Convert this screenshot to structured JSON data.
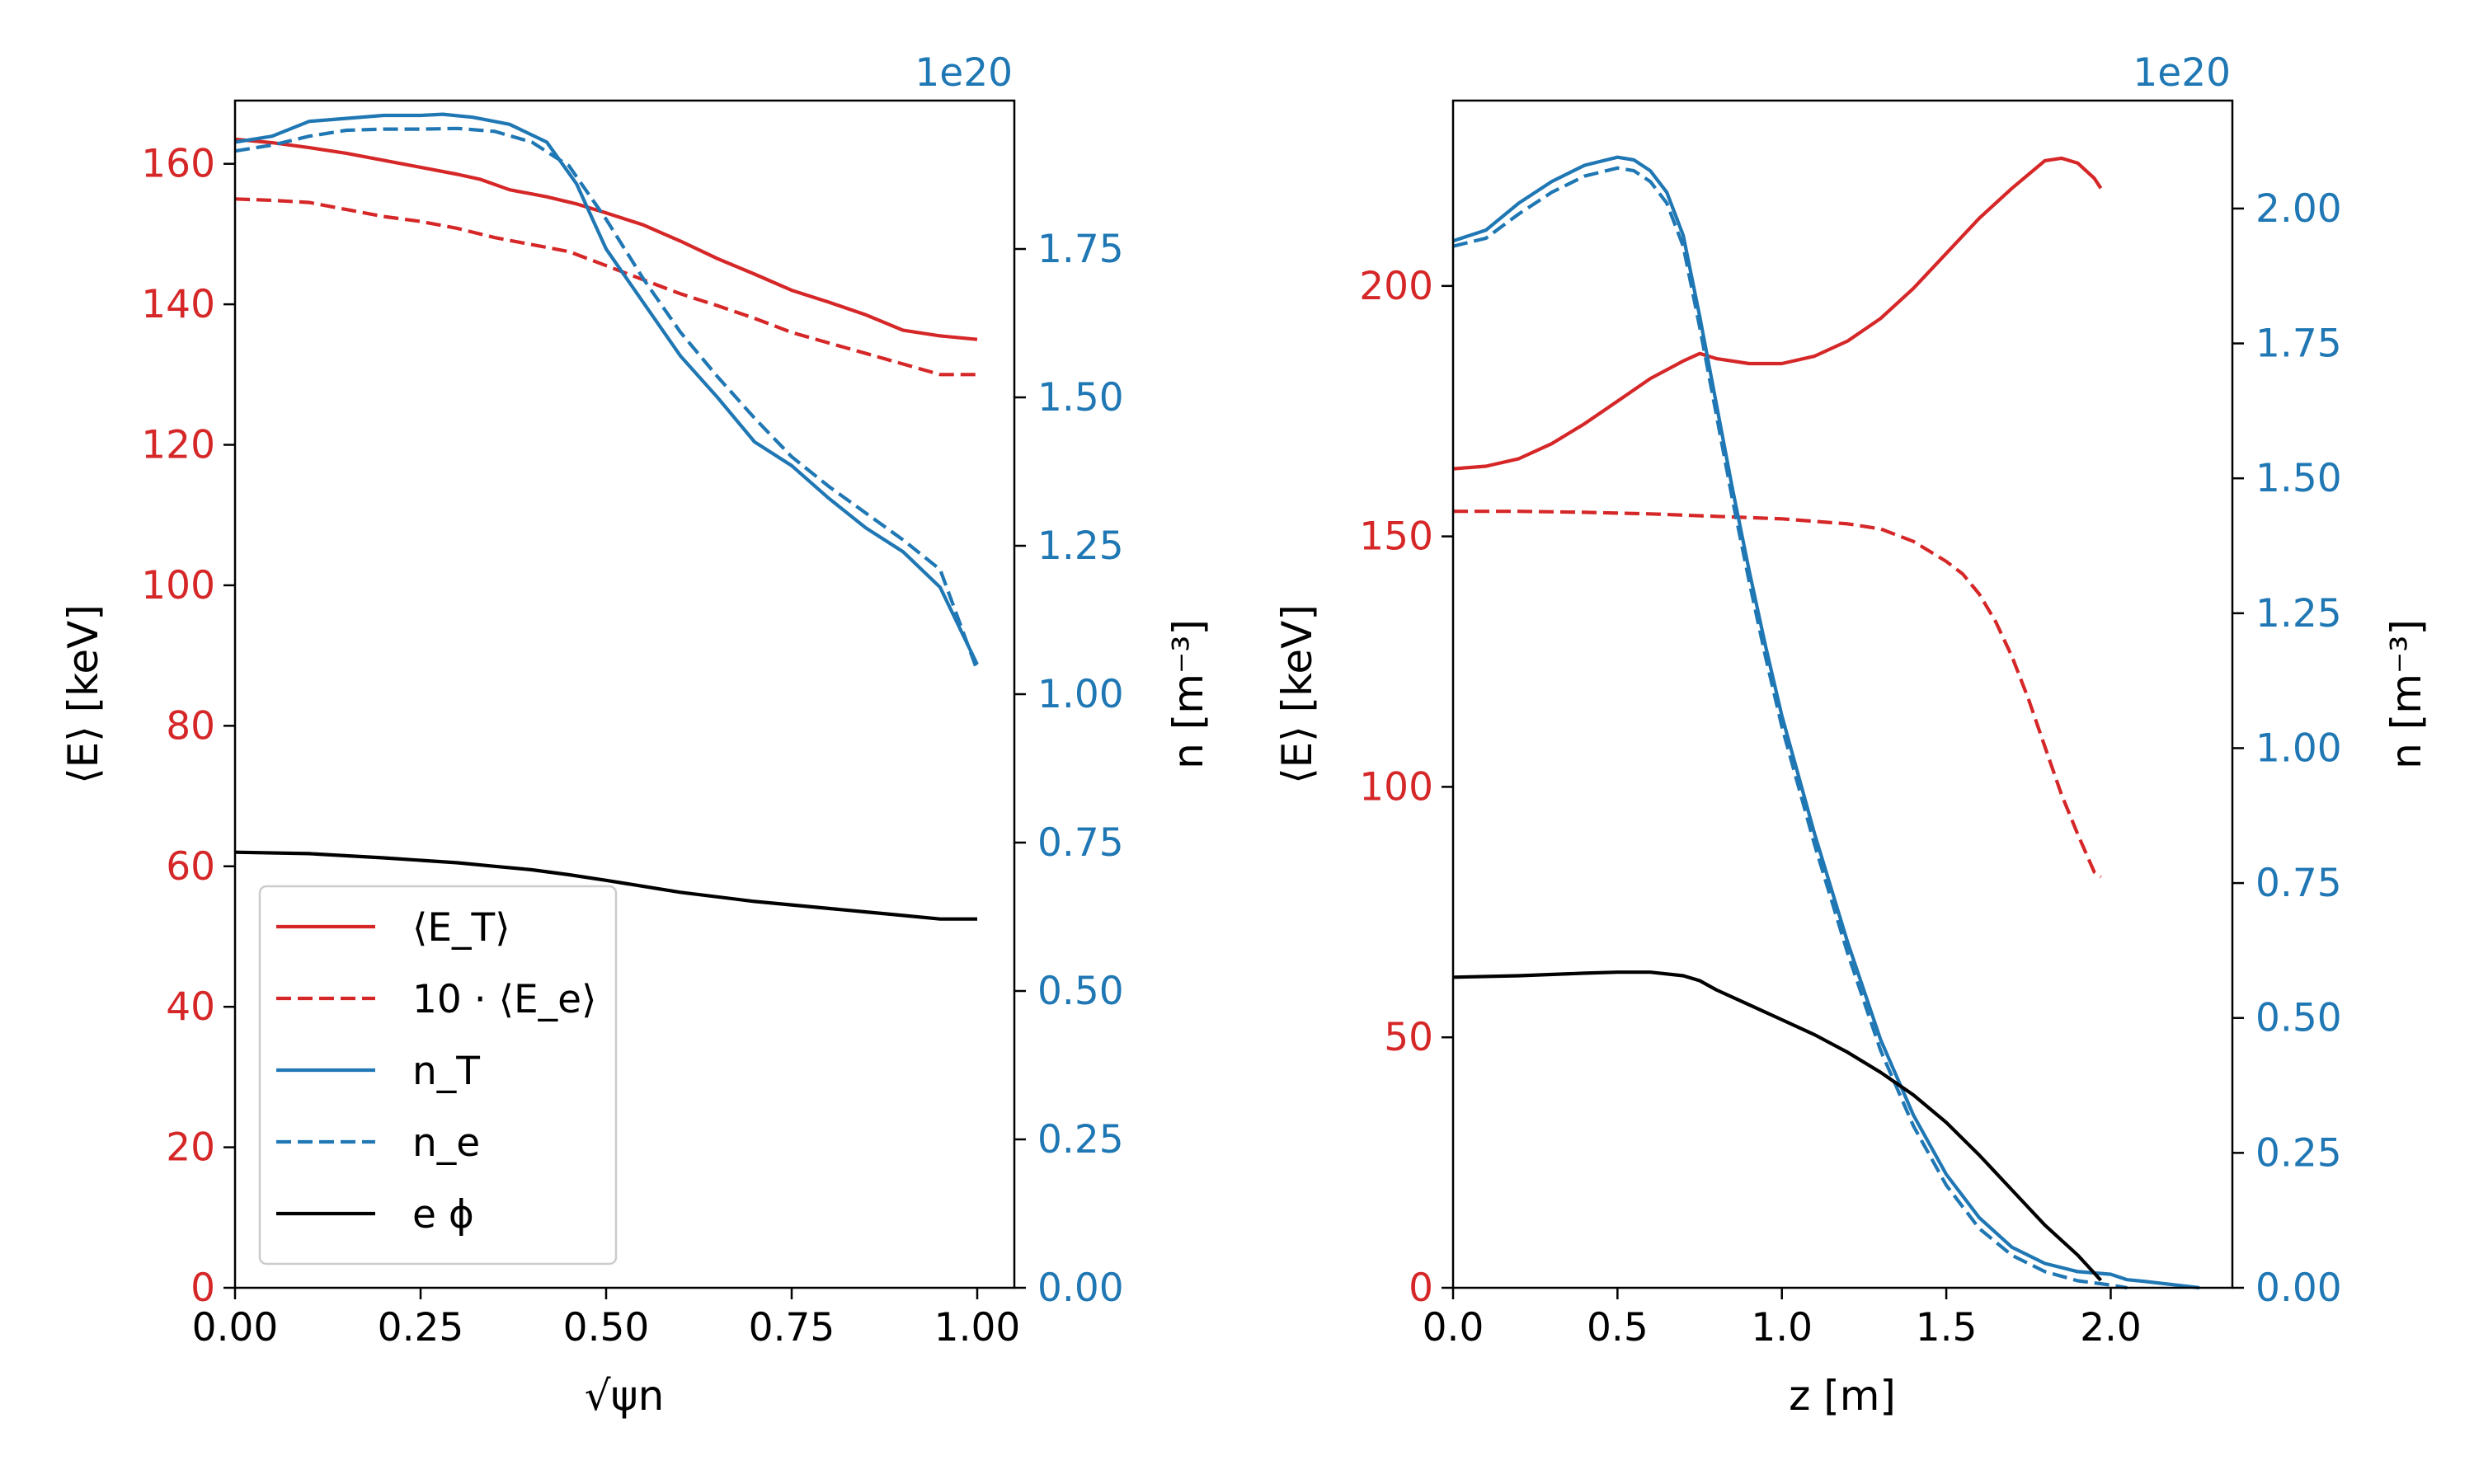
{
  "colors": {
    "E_T": "#d62728",
    "E_e": "#d62728",
    "n_T": "#1f77b4",
    "n_e": "#1f77b4",
    "ephi": "#000000",
    "left_axis": "#d62728",
    "right_axis": "#1f77b4"
  },
  "chart_data": [
    {
      "type": "line",
      "panel": "left",
      "xlabel": "√ψn",
      "ylabel_left": "⟨E⟩ [keV]",
      "ylabel_right": "n [m⁻³]",
      "right_exponent": "1e20",
      "xlim": [
        0.0,
        1.05
      ],
      "ylim_left": [
        0,
        169
      ],
      "ylim_right": [
        0.0,
        2.0
      ],
      "xticks": [
        0.0,
        0.25,
        0.5,
        0.75,
        1.0
      ],
      "xtick_labels": [
        "0.00",
        "0.25",
        "0.50",
        "0.75",
        "1.00"
      ],
      "yticks_left": [
        0,
        20,
        40,
        60,
        80,
        100,
        120,
        140,
        160
      ],
      "ytick_labels_left": [
        "0",
        "20",
        "40",
        "60",
        "80",
        "100",
        "120",
        "140",
        "160"
      ],
      "yticks_right": [
        0.0,
        0.25,
        0.5,
        0.75,
        1.0,
        1.25,
        1.5,
        1.75
      ],
      "ytick_labels_right": [
        "0.00",
        "0.25",
        "0.50",
        "0.75",
        "1.00",
        "1.25",
        "1.50",
        "1.75"
      ],
      "legend": {
        "position": "lower-left",
        "entries": [
          {
            "key": "E_T",
            "label": "⟨E_T⟩"
          },
          {
            "key": "E_e",
            "label": "10 · ⟨E_e⟩"
          },
          {
            "key": "n_T",
            "label": "n_T"
          },
          {
            "key": "n_e",
            "label": "n_e"
          },
          {
            "key": "ephi",
            "label": "e ϕ"
          }
        ]
      },
      "series": [
        {
          "key": "E_T",
          "name": "⟨E_T⟩",
          "axis": "left",
          "style": "solid",
          "x": [
            0.0,
            0.05,
            0.1,
            0.15,
            0.2,
            0.25,
            0.3,
            0.33,
            0.37,
            0.42,
            0.46,
            0.5,
            0.55,
            0.6,
            0.65,
            0.7,
            0.75,
            0.8,
            0.85,
            0.9,
            0.95,
            1.0
          ],
          "y": [
            163.5,
            163.0,
            162.3,
            161.5,
            160.5,
            159.5,
            158.5,
            157.8,
            156.3,
            155.3,
            154.3,
            153.0,
            151.3,
            149.0,
            146.5,
            144.3,
            142.0,
            140.3,
            138.5,
            136.3,
            135.5,
            135.0
          ]
        },
        {
          "key": "E_e",
          "name": "10 · ⟨E_e⟩",
          "axis": "left",
          "style": "dashed",
          "x": [
            0.0,
            0.05,
            0.1,
            0.15,
            0.2,
            0.25,
            0.3,
            0.35,
            0.4,
            0.45,
            0.5,
            0.55,
            0.6,
            0.65,
            0.7,
            0.75,
            0.8,
            0.85,
            0.9,
            0.95,
            1.0
          ],
          "y": [
            155.0,
            154.8,
            154.5,
            153.5,
            152.5,
            151.8,
            150.8,
            149.5,
            148.5,
            147.5,
            145.5,
            143.5,
            141.5,
            139.8,
            138.0,
            136.0,
            134.5,
            133.0,
            131.5,
            130.0,
            130.0
          ]
        },
        {
          "key": "n_T",
          "name": "n_T",
          "axis": "right",
          "style": "solid",
          "x": [
            0.0,
            0.05,
            0.1,
            0.15,
            0.2,
            0.25,
            0.28,
            0.32,
            0.37,
            0.42,
            0.46,
            0.5,
            0.55,
            0.6,
            0.65,
            0.7,
            0.75,
            0.8,
            0.85,
            0.9,
            0.95,
            1.0
          ],
          "y": [
            1.93,
            1.94,
            1.965,
            1.97,
            1.975,
            1.975,
            1.977,
            1.972,
            1.96,
            1.93,
            1.86,
            1.75,
            1.66,
            1.57,
            1.5,
            1.425,
            1.385,
            1.33,
            1.28,
            1.24,
            1.18,
            1.05
          ]
        },
        {
          "key": "n_e",
          "name": "n_e",
          "axis": "right",
          "style": "dashed",
          "x": [
            0.0,
            0.05,
            0.1,
            0.15,
            0.2,
            0.25,
            0.3,
            0.35,
            0.4,
            0.45,
            0.5,
            0.55,
            0.6,
            0.65,
            0.7,
            0.75,
            0.8,
            0.85,
            0.9,
            0.95,
            1.0
          ],
          "y": [
            1.915,
            1.925,
            1.94,
            1.95,
            1.952,
            1.952,
            1.953,
            1.948,
            1.93,
            1.89,
            1.8,
            1.7,
            1.61,
            1.535,
            1.465,
            1.4,
            1.35,
            1.305,
            1.26,
            1.21,
            1.04
          ]
        },
        {
          "key": "ephi",
          "name": "e ϕ",
          "axis": "left",
          "style": "solid",
          "x": [
            0.0,
            0.1,
            0.2,
            0.3,
            0.35,
            0.4,
            0.45,
            0.5,
            0.6,
            0.7,
            0.8,
            0.85,
            0.9,
            0.95,
            1.0
          ],
          "y": [
            62.0,
            61.8,
            61.2,
            60.5,
            60.0,
            59.5,
            58.8,
            58.0,
            56.3,
            55.0,
            54.0,
            53.5,
            53.0,
            52.5,
            52.5
          ]
        }
      ]
    },
    {
      "type": "line",
      "panel": "right",
      "xlabel": "z [m]",
      "ylabel_left": "⟨E⟩ [keV]",
      "ylabel_right": "n [m⁻³]",
      "right_exponent": "1e20",
      "xlim": [
        0.0,
        2.37
      ],
      "ylim_left": [
        0,
        237
      ],
      "ylim_right": [
        0.0,
        2.2
      ],
      "xticks": [
        0.0,
        0.5,
        1.0,
        1.5,
        2.0
      ],
      "xtick_labels": [
        "0.0",
        "0.5",
        "1.0",
        "1.5",
        "2.0"
      ],
      "yticks_left": [
        0,
        50,
        100,
        150,
        200
      ],
      "ytick_labels_left": [
        "0",
        "50",
        "100",
        "150",
        "200"
      ],
      "yticks_right": [
        0.0,
        0.25,
        0.5,
        0.75,
        1.0,
        1.25,
        1.5,
        1.75,
        2.0
      ],
      "ytick_labels_right": [
        "0.00",
        "0.25",
        "0.50",
        "0.75",
        "1.00",
        "1.25",
        "1.50",
        "1.75",
        "2.00"
      ],
      "series": [
        {
          "key": "E_T",
          "name": "⟨E_T⟩",
          "axis": "left",
          "style": "solid",
          "x": [
            0.0,
            0.1,
            0.2,
            0.3,
            0.4,
            0.5,
            0.6,
            0.7,
            0.75,
            0.8,
            0.9,
            1.0,
            1.1,
            1.2,
            1.3,
            1.4,
            1.5,
            1.6,
            1.7,
            1.8,
            1.85,
            1.9,
            1.95,
            1.97
          ],
          "y": [
            163.5,
            164.0,
            165.5,
            168.5,
            172.5,
            177.0,
            181.5,
            185.0,
            186.5,
            185.5,
            184.5,
            184.5,
            186.0,
            189.0,
            193.5,
            199.5,
            206.5,
            213.5,
            219.5,
            225.0,
            225.5,
            224.5,
            221.5,
            219.5
          ]
        },
        {
          "key": "E_e",
          "name": "10 · ⟨E_e⟩",
          "axis": "left",
          "style": "dashed",
          "x": [
            0.0,
            0.2,
            0.4,
            0.6,
            0.8,
            1.0,
            1.1,
            1.2,
            1.3,
            1.4,
            1.5,
            1.55,
            1.6,
            1.65,
            1.7,
            1.75,
            1.8,
            1.85,
            1.9,
            1.95,
            1.97
          ],
          "y": [
            155.0,
            155.0,
            154.8,
            154.5,
            154.0,
            153.5,
            153.0,
            152.5,
            151.5,
            149.0,
            145.0,
            142.5,
            138.5,
            133.0,
            126.0,
            117.5,
            108.0,
            98.5,
            90.5,
            83.0,
            82.0
          ]
        },
        {
          "key": "n_T",
          "name": "n_T",
          "axis": "right",
          "style": "solid",
          "x": [
            0.0,
            0.1,
            0.2,
            0.3,
            0.4,
            0.5,
            0.55,
            0.6,
            0.65,
            0.7,
            0.75,
            0.8,
            0.85,
            0.9,
            0.95,
            1.0,
            1.1,
            1.2,
            1.3,
            1.4,
            1.5,
            1.6,
            1.7,
            1.8,
            1.9,
            2.0,
            2.05,
            2.1,
            2.2,
            2.27
          ],
          "y": [
            1.94,
            1.96,
            2.01,
            2.05,
            2.08,
            2.095,
            2.09,
            2.07,
            2.03,
            1.95,
            1.8,
            1.64,
            1.48,
            1.33,
            1.19,
            1.06,
            0.84,
            0.64,
            0.46,
            0.32,
            0.21,
            0.13,
            0.075,
            0.045,
            0.03,
            0.025,
            0.015,
            0.012,
            0.005,
            0.0
          ]
        },
        {
          "key": "n_e",
          "name": "n_e",
          "axis": "right",
          "style": "dashed",
          "x": [
            0.0,
            0.1,
            0.2,
            0.3,
            0.4,
            0.5,
            0.55,
            0.6,
            0.65,
            0.7,
            0.75,
            0.8,
            0.85,
            0.9,
            0.95,
            1.0,
            1.1,
            1.2,
            1.3,
            1.4,
            1.5,
            1.6,
            1.7,
            1.8,
            1.9,
            2.0,
            2.05
          ],
          "y": [
            1.93,
            1.945,
            1.99,
            2.03,
            2.06,
            2.075,
            2.07,
            2.05,
            2.01,
            1.93,
            1.78,
            1.62,
            1.46,
            1.31,
            1.17,
            1.04,
            0.82,
            0.62,
            0.44,
            0.3,
            0.19,
            0.11,
            0.06,
            0.03,
            0.013,
            0.005,
            0.0
          ]
        },
        {
          "key": "ephi",
          "name": "e ϕ",
          "axis": "left",
          "style": "solid",
          "x": [
            0.0,
            0.2,
            0.4,
            0.5,
            0.6,
            0.7,
            0.75,
            0.8,
            0.9,
            1.0,
            1.1,
            1.2,
            1.3,
            1.4,
            1.5,
            1.6,
            1.7,
            1.8,
            1.9,
            1.97
          ],
          "y": [
            62.0,
            62.3,
            62.8,
            63.0,
            63.0,
            62.3,
            61.3,
            59.5,
            56.5,
            53.5,
            50.5,
            47.0,
            43.0,
            38.5,
            33.0,
            26.5,
            19.5,
            12.5,
            6.5,
            1.5
          ]
        }
      ]
    }
  ]
}
